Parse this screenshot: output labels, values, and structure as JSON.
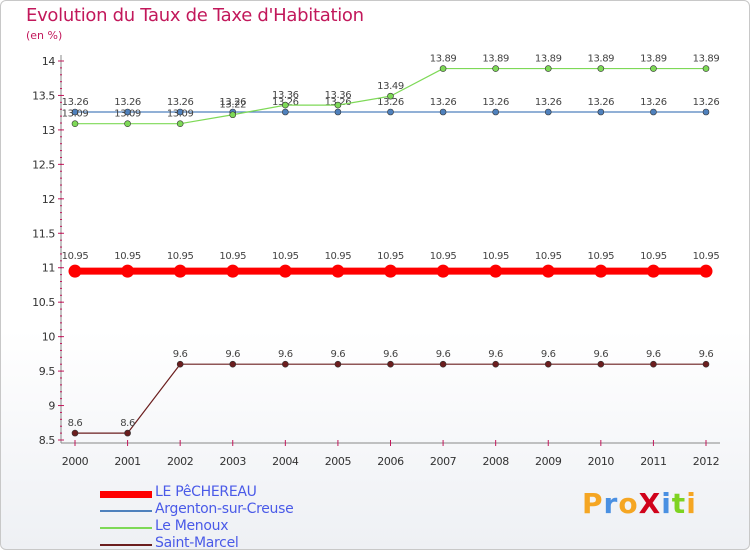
{
  "chart_data": {
    "type": "line",
    "title": "Evolution du Taux de Taxe d'Habitation",
    "ylabel": "(en %)",
    "xlabel": "",
    "x": [
      "2000",
      "2001",
      "2002",
      "2003",
      "2004",
      "2005",
      "2006",
      "2007",
      "2008",
      "2009",
      "2010",
      "2011",
      "2012"
    ],
    "ylim": [
      8.5,
      14
    ],
    "yticks": [
      "8.5",
      "9",
      "9.5",
      "10",
      "10.5",
      "11",
      "11.5",
      "12",
      "12.5",
      "13",
      "13.5",
      "14"
    ],
    "grid": false,
    "legend_position": "bottom-left",
    "series": [
      {
        "name": "LE PêCHEREAU",
        "color": "#ff0000",
        "values": [
          10.95,
          10.95,
          10.95,
          10.95,
          10.95,
          10.95,
          10.95,
          10.95,
          10.95,
          10.95,
          10.95,
          10.95,
          10.95
        ],
        "labels": [
          "10.95",
          "10.95",
          "10.95",
          "10.95",
          "10.95",
          "10.95",
          "10.95",
          "10.95",
          "10.95",
          "10.95",
          "10.95",
          "10.95",
          "10.95"
        ]
      },
      {
        "name": "Argenton-sur-Creuse",
        "color": "#4f81bd",
        "values": [
          13.26,
          13.26,
          13.26,
          13.26,
          13.26,
          13.26,
          13.26,
          13.26,
          13.26,
          13.26,
          13.26,
          13.26,
          13.26
        ],
        "labels": [
          "13.26",
          "13.26",
          "13.26",
          "13.26",
          "13.26",
          "13.26",
          "13.26",
          "13.26",
          "13.26",
          "13.26",
          "13.26",
          "13.26",
          "13.26"
        ]
      },
      {
        "name": "Le Menoux",
        "color": "#7ed957",
        "values": [
          13.09,
          13.09,
          13.09,
          13.22,
          13.36,
          13.36,
          13.49,
          13.89,
          13.89,
          13.89,
          13.89,
          13.89,
          13.89
        ],
        "labels": [
          "13.09",
          "13.09",
          "13.09",
          "13.22",
          "13.36",
          "13.36",
          "13.49",
          "13.89",
          "13.89",
          "13.89",
          "13.89",
          "13.89",
          "13.89"
        ]
      },
      {
        "name": "Saint-Marcel",
        "color": "#6b1e1e",
        "values": [
          8.6,
          8.6,
          9.6,
          9.6,
          9.6,
          9.6,
          9.6,
          9.6,
          9.6,
          9.6,
          9.6,
          9.6,
          9.6
        ],
        "labels": [
          "8.6",
          "8.6",
          "9.6",
          "9.6",
          "9.6",
          "9.6",
          "9.6",
          "9.6",
          "9.6",
          "9.6",
          "9.6",
          "9.6",
          "9.6"
        ]
      }
    ]
  },
  "logo": {
    "text": "ProXiti",
    "letters": [
      {
        "ch": "P",
        "color": "#f5a623"
      },
      {
        "ch": "r",
        "color": "#4a90e2"
      },
      {
        "ch": "o",
        "color": "#f5a623"
      },
      {
        "ch": "X",
        "color": "#d0021b"
      },
      {
        "ch": "i",
        "color": "#4a90e2"
      },
      {
        "ch": "t",
        "color": "#7ed321"
      },
      {
        "ch": "i",
        "color": "#f5a623"
      }
    ]
  }
}
